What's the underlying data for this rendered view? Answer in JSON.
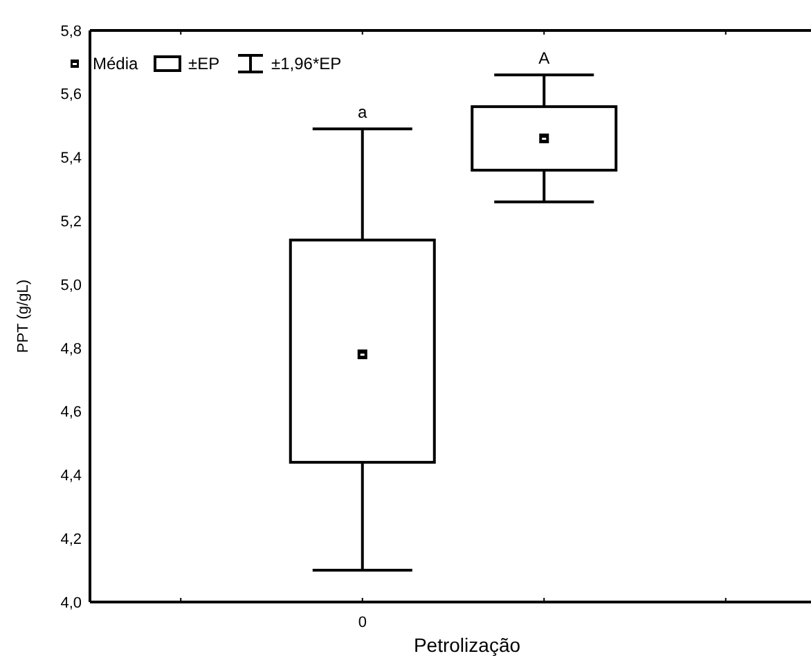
{
  "chart_data": {
    "type": "box",
    "xlabel": "Petrolização",
    "ylabel": "PPT (g/gL)",
    "categories": [
      "0",
      null
    ],
    "boxes": [
      {
        "low": 4.1,
        "q1": 4.44,
        "median": 4.78,
        "q3": 5.14,
        "high": 5.49
      },
      {
        "low": 5.26,
        "q1": 5.36,
        "median": 5.46,
        "q3": 5.56,
        "high": 5.66
      }
    ],
    "color": "#000000",
    "ylim": [
      4.0,
      5.8
    ],
    "yticks": [
      {
        "value": 4.0,
        "label": "4,0"
      },
      {
        "value": 4.2,
        "label": "4,2"
      },
      {
        "value": 4.4,
        "label": "4,4"
      },
      {
        "value": 4.6,
        "label": "4,6"
      },
      {
        "value": 4.8,
        "label": "4,8"
      },
      {
        "value": 5.0,
        "label": "5,0"
      },
      {
        "value": 5.2,
        "label": "5,2"
      },
      {
        "value": 5.4,
        "label": "5,4"
      },
      {
        "value": 5.6,
        "label": "5,6"
      },
      {
        "value": 5.8,
        "label": "5,8"
      }
    ],
    "annotations": [
      "a",
      "A",
      "Média",
      "±EP",
      "±1,96*EP"
    ],
    "grid": false
  }
}
